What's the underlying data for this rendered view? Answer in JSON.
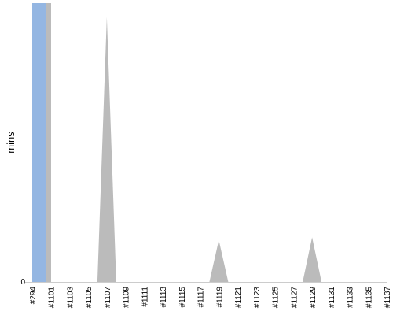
{
  "chart_data": {
    "type": "area",
    "title": "",
    "xlabel": "",
    "ylabel": "mins",
    "y_tick_labels": [
      "0"
    ],
    "ylim": [
      0,
      1
    ],
    "grid": false,
    "legend": "none",
    "categories": [
      "#294",
      "#1101",
      "#1103",
      "#1105",
      "#1107",
      "#1109",
      "#1111",
      "#1113",
      "#1115",
      "#1117",
      "#1119",
      "#1121",
      "#1123",
      "#1125",
      "#1127",
      "#1129",
      "#1131",
      "#1133",
      "#1135",
      "#1137"
    ],
    "series": [
      {
        "color": "#bbbbbb",
        "values": [
          1.0,
          0.0,
          0.0,
          0.0,
          0.95,
          0.0,
          0.0,
          0.0,
          0.0,
          0.0,
          0.15,
          0.0,
          0.0,
          0.0,
          0.0,
          0.16,
          0.0,
          0.0,
          0.0,
          0.0
        ]
      },
      {
        "color": "#94b6e2",
        "values": [
          1.0,
          null,
          null,
          null,
          null,
          null,
          null,
          null,
          null,
          null,
          null,
          null,
          null,
          null,
          null,
          null,
          null,
          null,
          null,
          null
        ]
      }
    ]
  }
}
